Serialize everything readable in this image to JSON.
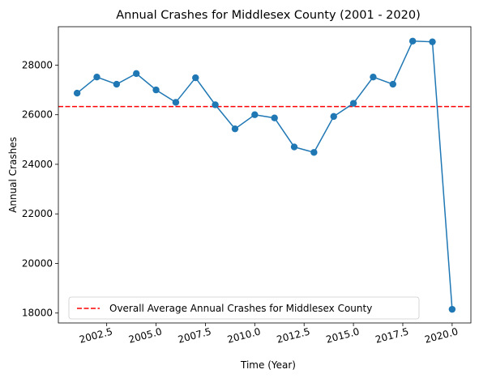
{
  "chart_data": {
    "type": "line",
    "title": "Annual Crashes for Middlesex County (2001 - 2020)",
    "xlabel": "Time (Year)",
    "ylabel": "Annual Crashes",
    "xlim": [
      2000.05,
      2020.95
    ],
    "ylim": [
      17600,
      29550
    ],
    "xticks": [
      2002.5,
      2005.0,
      2007.5,
      2010.0,
      2012.5,
      2015.0,
      2017.5,
      2020.0
    ],
    "xtick_labels": [
      "2002.5",
      "2005.0",
      "2007.5",
      "2010.0",
      "2012.5",
      "2015.0",
      "2017.5",
      "2020.0"
    ],
    "yticks": [
      18000,
      20000,
      22000,
      24000,
      26000,
      28000
    ],
    "ytick_labels": [
      "18000",
      "20000",
      "22000",
      "24000",
      "26000",
      "28000"
    ],
    "grid": false,
    "legend_position": "lower-left",
    "series": [
      {
        "x": [
          2001,
          2002,
          2003,
          2004,
          2005,
          2006,
          2007,
          2008,
          2009,
          2010,
          2011,
          2012,
          2013,
          2014,
          2015,
          2016,
          2017,
          2018,
          2019,
          2020
        ],
        "values": [
          26870,
          27520,
          27230,
          27660,
          27000,
          26500,
          27490,
          26400,
          25430,
          26000,
          25870,
          24700,
          24480,
          25930,
          26460,
          27520,
          27230,
          28970,
          28940,
          18150
        ],
        "color": "#1f77b4",
        "marker": "circle"
      }
    ],
    "reference_lines": [
      {
        "name": "Overall Average Annual Crashes for Middlesex County",
        "y": 26330,
        "color": "#ff0000",
        "style": "dashed"
      }
    ]
  }
}
